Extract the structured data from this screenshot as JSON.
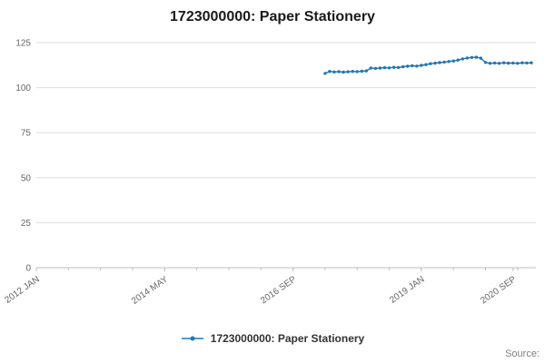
{
  "title": "1723000000: Paper Stationery",
  "legend": {
    "label": "1723000000: Paper Stationery"
  },
  "source_label": "Source:",
  "colors": {
    "line": "#1f77b4",
    "grid": "#dddddd",
    "axis": "#bfbfbf",
    "tick_label": "#666666",
    "title": "#1a1a1a"
  },
  "chart_data": {
    "type": "line",
    "title": "1723000000: Paper Stationery",
    "xlabel": "",
    "ylabel": "",
    "ylim": [
      0,
      125
    ],
    "y_ticks": [
      0,
      25,
      50,
      75,
      100,
      125
    ],
    "grid": "horizontal",
    "legend_position": "bottom",
    "x_range": {
      "start": "2012-01",
      "end": "2021-02"
    },
    "x_minor_tick_months": 7,
    "x_tick_labels": [
      {
        "label": "2012 JAN",
        "month": "2012-01"
      },
      {
        "label": "2014 MAY",
        "month": "2014-05"
      },
      {
        "label": "2016 SEP",
        "month": "2016-09"
      },
      {
        "label": "2019 JAN",
        "month": "2019-01"
      },
      {
        "label": "2020 SEP",
        "month": "2020-09"
      }
    ],
    "series": [
      {
        "name": "1723000000: Paper Stationery",
        "start_month": "2017-04",
        "frequency": "monthly",
        "values": [
          107.9,
          109.0,
          108.7,
          108.9,
          108.6,
          108.8,
          109.0,
          108.9,
          109.1,
          109.3,
          110.9,
          110.7,
          110.9,
          111.1,
          111.0,
          111.3,
          111.2,
          111.6,
          111.9,
          112.2,
          112.0,
          112.4,
          112.8,
          113.3,
          113.6,
          113.9,
          114.2,
          114.5,
          114.8,
          115.3,
          116.0,
          116.5,
          116.8,
          116.9,
          116.4,
          114.0,
          113.5,
          113.7,
          113.5,
          113.8,
          113.6,
          113.7,
          113.5,
          113.8,
          113.7,
          113.8
        ]
      }
    ]
  }
}
